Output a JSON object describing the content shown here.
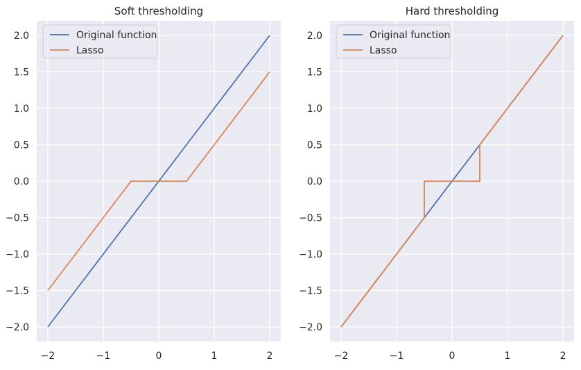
{
  "chart_data": [
    {
      "type": "line",
      "title": "Soft thresholding",
      "xlabel": "",
      "ylabel": "",
      "xlim": [
        -2.2,
        2.2
      ],
      "ylim": [
        -2.2,
        2.2
      ],
      "xticks": [
        -2,
        -1,
        0,
        1,
        2
      ],
      "xtick_labels": [
        "−2",
        "−1",
        "0",
        "1",
        "2"
      ],
      "yticks": [
        -2.0,
        -1.5,
        -1.0,
        -0.5,
        0.0,
        0.5,
        1.0,
        1.5,
        2.0
      ],
      "ytick_labels": [
        "−2.0",
        "−1.5",
        "−1.0",
        "−0.5",
        "0.0",
        "0.5",
        "1.0",
        "1.5",
        "2.0"
      ],
      "grid": true,
      "legend": "top-left",
      "series": [
        {
          "name": "Original function",
          "color": "#4c72b0",
          "x": [
            -2,
            2
          ],
          "y": [
            -2,
            2
          ]
        },
        {
          "name": "Lasso",
          "color": "#dd8452",
          "x": [
            -2,
            -0.5,
            0.5,
            2
          ],
          "y": [
            -1.5,
            0,
            0,
            1.5
          ]
        }
      ]
    },
    {
      "type": "line",
      "title": "Hard thresholding",
      "xlabel": "",
      "ylabel": "",
      "xlim": [
        -2.2,
        2.2
      ],
      "ylim": [
        -2.2,
        2.2
      ],
      "xticks": [
        -2,
        -1,
        0,
        1,
        2
      ],
      "xtick_labels": [
        "−2",
        "−1",
        "0",
        "1",
        "2"
      ],
      "yticks": [
        -2.0,
        -1.5,
        -1.0,
        -0.5,
        0.0,
        0.5,
        1.0,
        1.5,
        2.0
      ],
      "ytick_labels": [
        "−2.0",
        "−1.5",
        "−1.0",
        "−0.5",
        "0.0",
        "0.5",
        "1.0",
        "1.5",
        "2.0"
      ],
      "grid": true,
      "legend": "top-left",
      "series": [
        {
          "name": "Original function",
          "color": "#4c72b0",
          "x": [
            -2,
            2
          ],
          "y": [
            -2,
            2
          ]
        },
        {
          "name": "Lasso",
          "color": "#dd8452",
          "x": [
            -2,
            -0.5,
            -0.5,
            0.5,
            0.5,
            2
          ],
          "y": [
            -2,
            -0.5,
            0,
            0,
            0.5,
            2
          ]
        }
      ]
    }
  ],
  "style": {
    "plot_background": "#eaeaf2",
    "grid_color": "#ffffff",
    "text_color": "#262626"
  }
}
